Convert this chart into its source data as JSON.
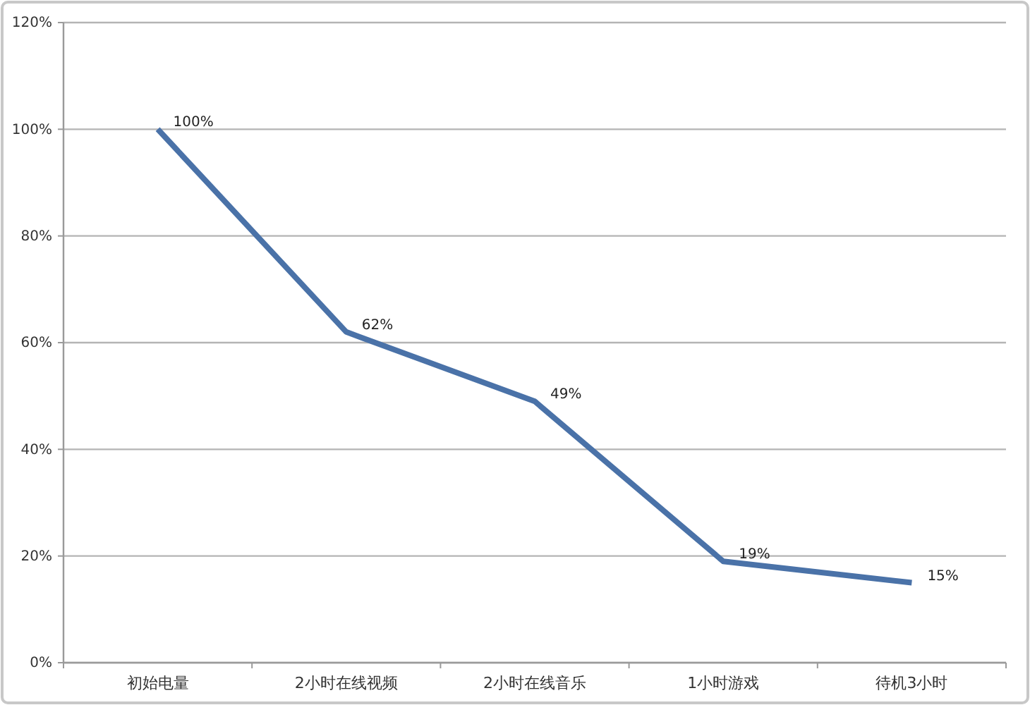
{
  "chart_data": {
    "type": "line",
    "categories": [
      "初始电量",
      "2小时在线视频",
      "2小时在线音乐",
      "1小时游戏",
      "待机3小时"
    ],
    "series": [
      {
        "color": "#4a72a8",
        "values": [
          100,
          62,
          49,
          19,
          15
        ],
        "value_labels": [
          "100%",
          "62%",
          "49%",
          "19%",
          "15%"
        ]
      }
    ],
    "ylim": [
      0,
      120
    ],
    "yticks": [
      {
        "value": 0,
        "label": "0%"
      },
      {
        "value": 20,
        "label": "20%"
      },
      {
        "value": 40,
        "label": "40%"
      },
      {
        "value": 60,
        "label": "60%"
      },
      {
        "value": 80,
        "label": "80%"
      },
      {
        "value": 100,
        "label": "100%"
      },
      {
        "value": 120,
        "label": "120%"
      }
    ],
    "grid": "y",
    "marker": "none",
    "line_style": "solid"
  }
}
